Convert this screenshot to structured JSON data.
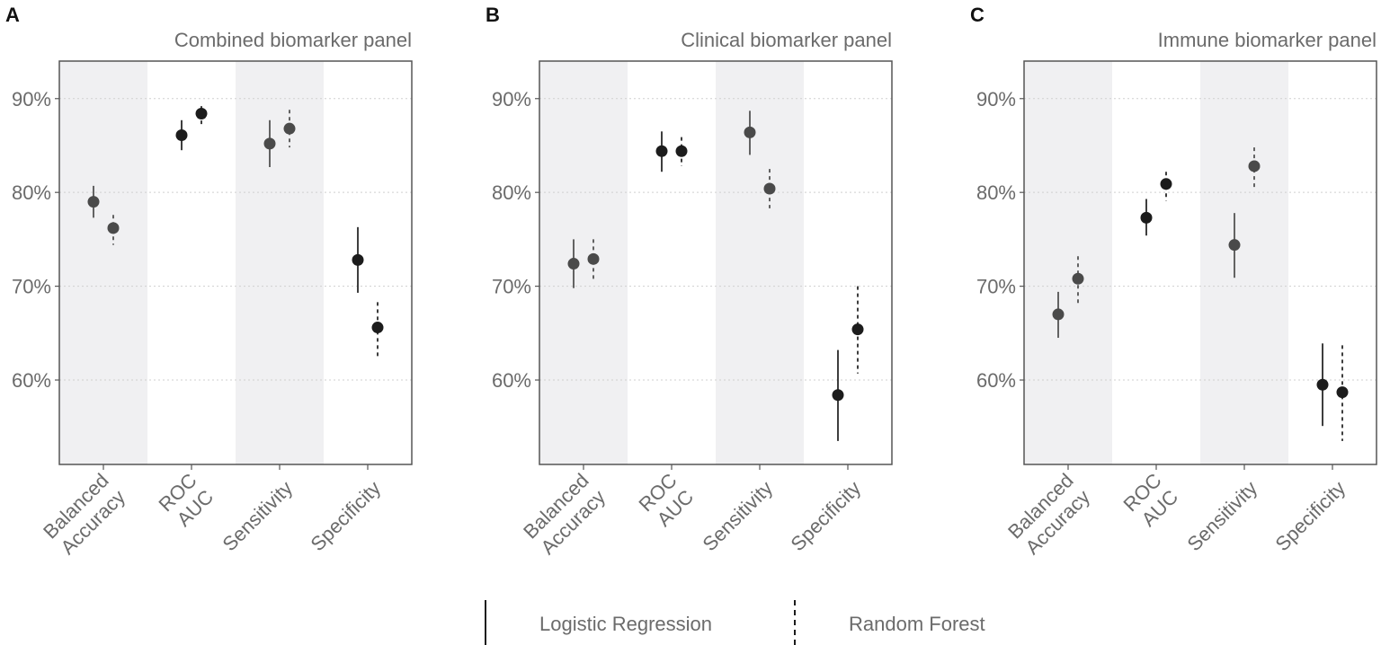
{
  "chart_data": {
    "type": "scatter",
    "description_type": "point-range (estimate with interval)",
    "categories": [
      [
        "Balanced",
        "Accuracy"
      ],
      [
        "ROC",
        "AUC"
      ],
      [
        "Sensitivity"
      ],
      [
        "Specificity"
      ]
    ],
    "series_names": [
      "Logistic Regression",
      "Random Forest"
    ],
    "ylim": [
      51,
      94
    ],
    "yticks": [
      60,
      70,
      80,
      90
    ],
    "ytick_labels": [
      "60%",
      "70%",
      "80%",
      "90%"
    ],
    "grid": "horizontal dotted",
    "legend_position": "bottom-center",
    "colors": {
      "point_dark": "#1c1c1c",
      "point_grey": "#4a4a4a",
      "shade": "#f0f0f2",
      "frame": "#555555",
      "grid": "#cfcfcf",
      "text": "#6b6b6b"
    },
    "panels": [
      {
        "letter": "A",
        "title": "Combined biomarker panel",
        "series": [
          {
            "name": "Logistic Regression",
            "line_style": "solid",
            "points": [
              {
                "category": "Balanced Accuracy",
                "value": 79.0,
                "low": 77.3,
                "high": 80.7,
                "tone": "grey"
              },
              {
                "category": "ROC AUC",
                "value": 86.1,
                "low": 84.5,
                "high": 87.7,
                "tone": "dark"
              },
              {
                "category": "Sensitivity",
                "value": 85.2,
                "low": 82.7,
                "high": 87.7,
                "tone": "grey"
              },
              {
                "category": "Specificity",
                "value": 72.8,
                "low": 69.3,
                "high": 76.3,
                "tone": "dark"
              }
            ]
          },
          {
            "name": "Random Forest",
            "line_style": "dashed",
            "points": [
              {
                "category": "Balanced Accuracy",
                "value": 76.2,
                "low": 74.4,
                "high": 77.6,
                "tone": "grey"
              },
              {
                "category": "ROC AUC",
                "value": 88.4,
                "low": 87.2,
                "high": 89.2,
                "tone": "dark"
              },
              {
                "category": "Sensitivity",
                "value": 86.8,
                "low": 84.8,
                "high": 88.8,
                "tone": "grey"
              },
              {
                "category": "Specificity",
                "value": 65.6,
                "low": 62.5,
                "high": 68.3,
                "tone": "dark"
              }
            ]
          }
        ]
      },
      {
        "letter": "B",
        "title": "Clinical biomarker panel",
        "series": [
          {
            "name": "Logistic Regression",
            "line_style": "solid",
            "points": [
              {
                "category": "Balanced Accuracy",
                "value": 72.4,
                "low": 69.8,
                "high": 75.0,
                "tone": "grey"
              },
              {
                "category": "ROC AUC",
                "value": 84.4,
                "low": 82.2,
                "high": 86.5,
                "tone": "dark"
              },
              {
                "category": "Sensitivity",
                "value": 86.4,
                "low": 84.0,
                "high": 88.7,
                "tone": "grey"
              },
              {
                "category": "Specificity",
                "value": 58.4,
                "low": 53.5,
                "high": 63.2,
                "tone": "dark"
              }
            ]
          },
          {
            "name": "Random Forest",
            "line_style": "dashed",
            "points": [
              {
                "category": "Balanced Accuracy",
                "value": 72.9,
                "low": 70.6,
                "high": 75.0,
                "tone": "grey"
              },
              {
                "category": "ROC AUC",
                "value": 84.4,
                "low": 82.8,
                "high": 85.9,
                "tone": "dark"
              },
              {
                "category": "Sensitivity",
                "value": 80.4,
                "low": 78.3,
                "high": 82.5,
                "tone": "grey"
              },
              {
                "category": "Specificity",
                "value": 65.4,
                "low": 60.7,
                "high": 70.0,
                "tone": "dark"
              }
            ]
          }
        ]
      },
      {
        "letter": "C",
        "title": "Immune biomarker panel",
        "series": [
          {
            "name": "Logistic Regression",
            "line_style": "solid",
            "points": [
              {
                "category": "Balanced Accuracy",
                "value": 67.0,
                "low": 64.5,
                "high": 69.4,
                "tone": "grey"
              },
              {
                "category": "ROC AUC",
                "value": 77.3,
                "low": 75.4,
                "high": 79.3,
                "tone": "dark"
              },
              {
                "category": "Sensitivity",
                "value": 74.4,
                "low": 70.9,
                "high": 77.8,
                "tone": "grey"
              },
              {
                "category": "Specificity",
                "value": 59.5,
                "low": 55.1,
                "high": 63.9,
                "tone": "dark"
              }
            ]
          },
          {
            "name": "Random Forest",
            "line_style": "dashed",
            "points": [
              {
                "category": "Balanced Accuracy",
                "value": 70.8,
                "low": 68.2,
                "high": 73.2,
                "tone": "grey"
              },
              {
                "category": "ROC AUC",
                "value": 80.9,
                "low": 79.1,
                "high": 82.2,
                "tone": "dark"
              },
              {
                "category": "Sensitivity",
                "value": 82.8,
                "low": 80.5,
                "high": 84.8,
                "tone": "grey"
              },
              {
                "category": "Specificity",
                "value": 58.7,
                "low": 53.5,
                "high": 63.7,
                "tone": "dark"
              }
            ]
          }
        ]
      }
    ]
  },
  "legend": {
    "items": [
      {
        "label": "Logistic Regression",
        "line_style": "solid"
      },
      {
        "label": "Random Forest",
        "line_style": "dashed"
      }
    ]
  }
}
